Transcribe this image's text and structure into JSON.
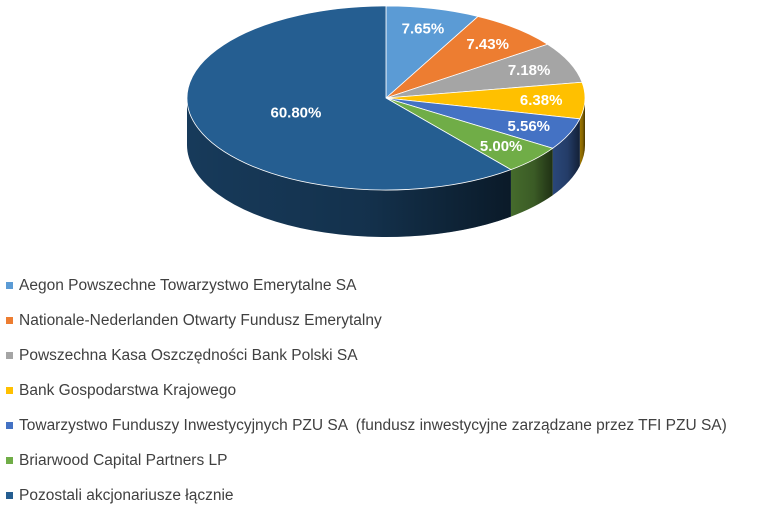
{
  "chart_data": {
    "type": "pie",
    "title": "",
    "legend_position": "bottom",
    "series": [
      {
        "name": "Aegon Powszechne Towarzystwo Emerytalne SA",
        "value": 7.65,
        "label": "7.65%",
        "color": "#5B9BD5"
      },
      {
        "name": "Nationale-Nederlanden Otwarty Fundusz Emerytalny",
        "value": 7.43,
        "label": "7.43%",
        "color": "#ED7D31"
      },
      {
        "name": "Powszechna Kasa Oszczędności Bank Polski SA",
        "value": 7.18,
        "label": "7.18%",
        "color": "#A5A5A5"
      },
      {
        "name": "Bank Gospodarstwa Krajowego",
        "value": 6.38,
        "label": "6.38%",
        "color": "#FFC000"
      },
      {
        "name": "Towarzystwo Funduszy Inwestycyjnych PZU SA  (fundusz inwestycyjne zarządzane przez TFI PZU SA)",
        "value": 5.56,
        "label": "5.56%",
        "color": "#4472C4"
      },
      {
        "name": "Briarwood Capital Partners LP",
        "value": 5.0,
        "label": "5.00%",
        "color": "#70AD47"
      },
      {
        "name": "Pozostali akcjonariusze łącznie",
        "value": 60.8,
        "label": "60.80%",
        "color": "#255E91"
      }
    ]
  }
}
